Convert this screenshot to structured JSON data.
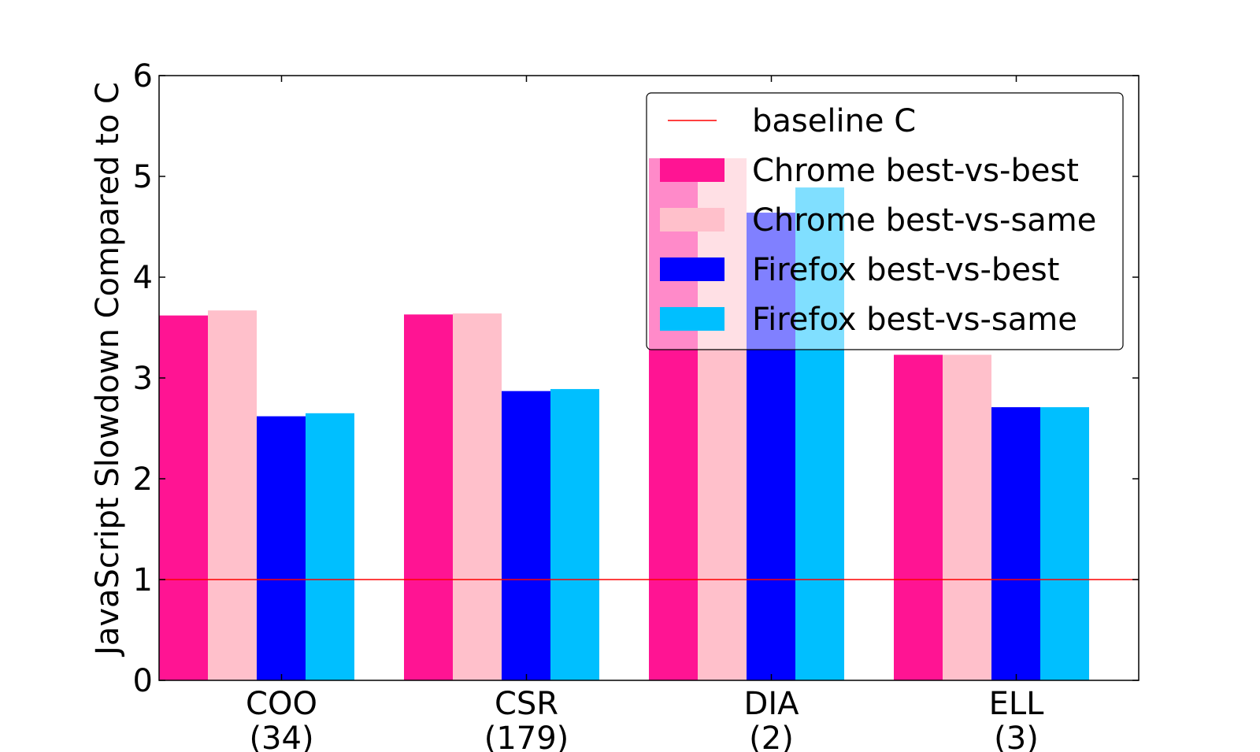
{
  "chart_data": {
    "type": "bar",
    "title": "",
    "xlabel": "",
    "ylabel": "JavaScript Slowdown Compared to C",
    "ylim": [
      0,
      6
    ],
    "yticks": [
      "0",
      "1",
      "2",
      "3",
      "4",
      "5",
      "6"
    ],
    "grid": false,
    "legend_position": "top-right",
    "categories": [
      {
        "name": "COO",
        "count": "(34)"
      },
      {
        "name": "CSR",
        "count": "(179)"
      },
      {
        "name": "DIA",
        "count": "(2)"
      },
      {
        "name": "ELL",
        "count": "(3)"
      }
    ],
    "baseline": {
      "name": "baseline C",
      "value": 1,
      "color": "#ff0000"
    },
    "series": [
      {
        "name": "Chrome best-vs-best",
        "color": "#ff1493",
        "values": [
          3.62,
          3.63,
          5.18,
          3.23
        ]
      },
      {
        "name": "Chrome best-vs-same",
        "color": "#ffc0cb",
        "values": [
          3.67,
          3.64,
          5.18,
          3.23
        ]
      },
      {
        "name": "Firefox best-vs-best",
        "color": "#0000ff",
        "values": [
          2.62,
          2.87,
          4.64,
          2.71
        ]
      },
      {
        "name": "Firefox best-vs-same",
        "color": "#00bfff",
        "values": [
          2.65,
          2.89,
          4.89,
          2.71
        ]
      }
    ]
  }
}
